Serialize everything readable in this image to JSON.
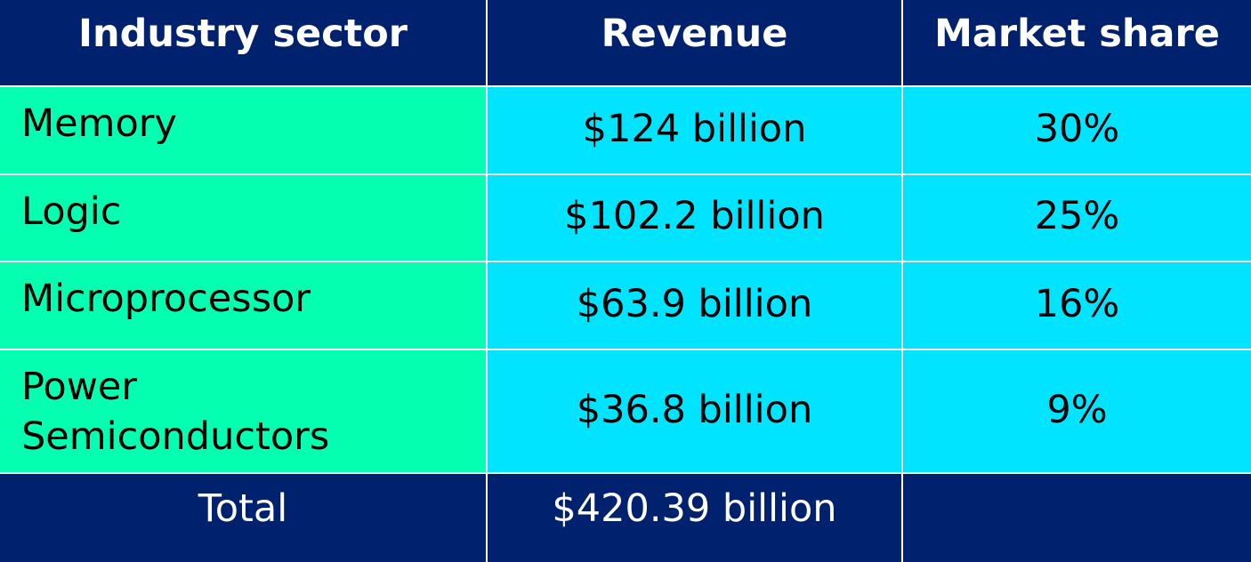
{
  "colors": {
    "header_bg": "#00216e",
    "header_text": "#ffffff",
    "sector_bg": "#05ffb0",
    "value_bg": "#00e4ff",
    "border": "#ffffff"
  },
  "chart_data": {
    "type": "table",
    "columns": [
      "Industry sector",
      "Revenue",
      "Market share"
    ],
    "rows": [
      [
        "Memory",
        "$124 billion",
        "30%"
      ],
      [
        "Logic",
        "$102.2 billion",
        "25%"
      ],
      [
        "Microprocessor",
        "$63.9 billion",
        "16%"
      ],
      [
        "Power\nSemiconductors",
        "$36.8 billion",
        "9%"
      ]
    ],
    "footer": [
      "Total",
      "$420.39 billion",
      ""
    ]
  }
}
